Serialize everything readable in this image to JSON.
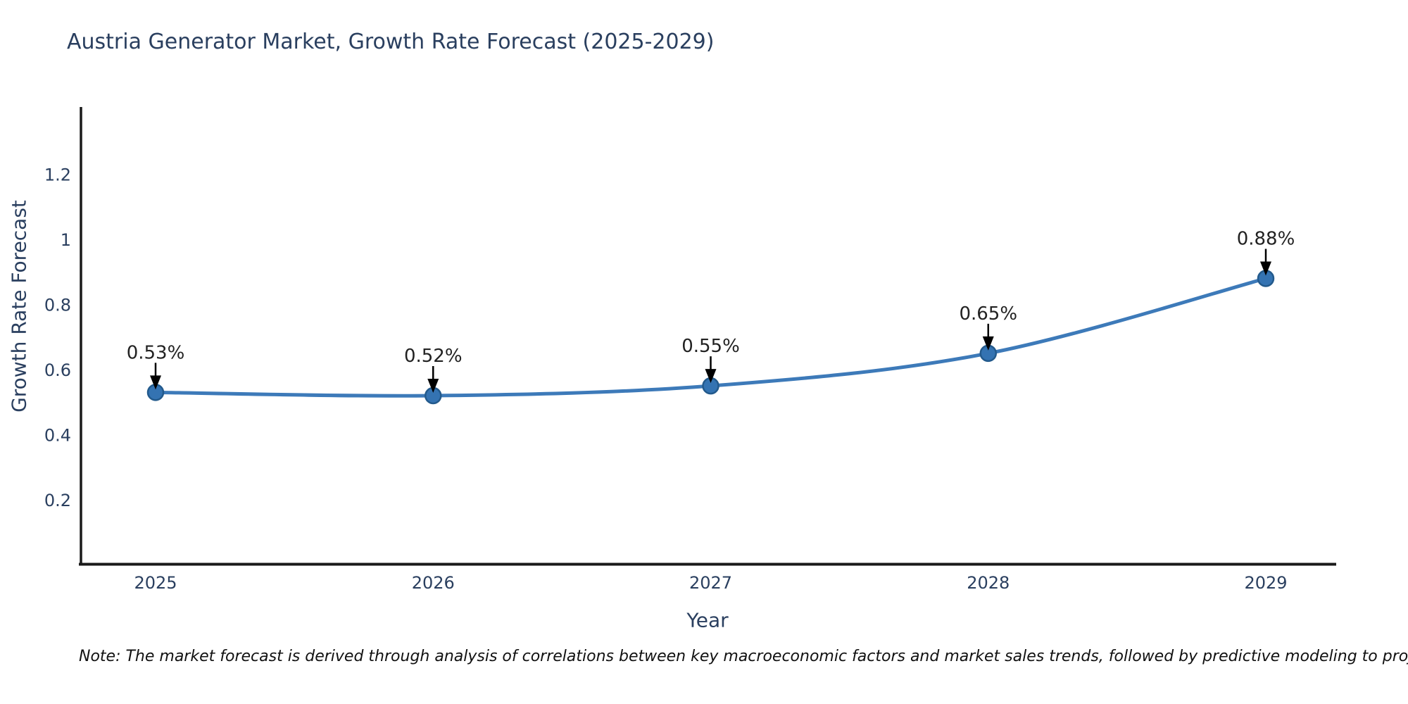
{
  "chart_data": {
    "type": "line",
    "title": "Austria Generator Market, Growth Rate Forecast (2025-2029)",
    "note": "Note: The market forecast is derived through analysis of correlations between key macroeconomic factors and market sales trends, followed by predictive modeling to project future sales",
    "xlabel": "Year",
    "ylabel": "Growth Rate Forecast",
    "categories": [
      "2025",
      "2026",
      "2027",
      "2028",
      "2029"
    ],
    "series": [
      {
        "name": "Growth Rate Forecast",
        "values": [
          0.53,
          0.52,
          0.55,
          0.65,
          0.88
        ],
        "point_labels": [
          "0.53%",
          "0.52%",
          "0.55%",
          "0.65%",
          "0.88%"
        ]
      }
    ],
    "yticks": [
      0.2,
      0.4,
      0.6,
      0.8,
      1,
      1.2
    ],
    "ylim": [
      0,
      1.4
    ],
    "grid": false,
    "legend_position": "none",
    "curve": "spline",
    "annotations_have_arrows": true,
    "colors": {
      "line": "#3d7ab9",
      "marker_fill": "#3473b2",
      "marker_edge": "#235a8c",
      "axis": "#1a1a1a",
      "tick_text": "#2a3f5f",
      "annotation_text": "#222222",
      "arrow": "#000000",
      "background": "#ffffff"
    }
  }
}
